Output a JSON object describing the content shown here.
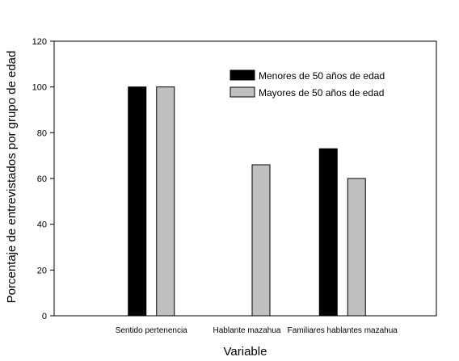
{
  "chart_data": {
    "type": "bar",
    "categories": [
      "Sentido pertenencia",
      "Hablante mazahua",
      "Familiares hablantes mazahua"
    ],
    "series": [
      {
        "name": "Menores de 50 años de edad",
        "values": [
          100,
          0,
          73
        ],
        "color": "#000000"
      },
      {
        "name": "Mayores de 50 años de edad",
        "values": [
          100,
          66,
          60
        ],
        "color": "#c0c0c0"
      }
    ],
    "title": "",
    "xlabel": "Variable",
    "ylabel": "Porcentaje de entrevistados por grupo de edad",
    "ylim": [
      0,
      120
    ],
    "yticks": [
      0,
      20,
      40,
      60,
      80,
      100,
      120
    ],
    "legend_position": "top-right",
    "grid": false
  }
}
